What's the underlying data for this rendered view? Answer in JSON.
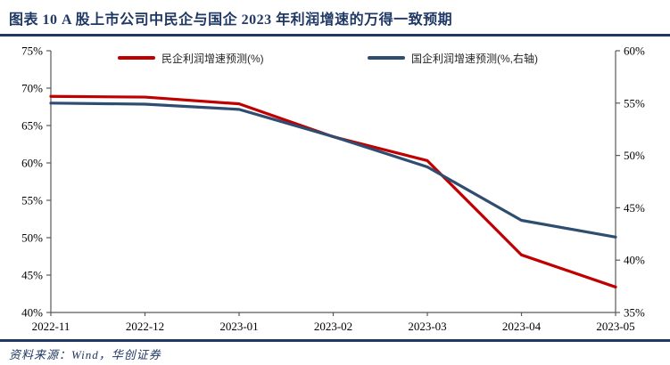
{
  "header": {
    "title": "图表 10   A 股上市公司中民企与国企 2023 年利润增速的万得一致预期"
  },
  "footer": {
    "source": "资料来源：Wind，华创证券"
  },
  "colors": {
    "accent_navy": "#1F3864",
    "private_line": "#C00000",
    "soe_line": "#2E4D71",
    "axis": "#595959",
    "tick_text": "#000000"
  },
  "chart_data": {
    "type": "line",
    "categories": [
      "2022-11",
      "2022-12",
      "2023-01",
      "2023-02",
      "2023-03",
      "2023-04",
      "2023-05"
    ],
    "series": [
      {
        "name": "民企利润增速预测(%)",
        "axis": "left",
        "color": "#C00000",
        "values": [
          68.9,
          68.8,
          67.9,
          63.5,
          60.3,
          47.7,
          43.4
        ]
      },
      {
        "name": "国企利润增速预测(%,右轴)",
        "axis": "right",
        "color": "#2E4D71",
        "values": [
          55.0,
          54.9,
          54.4,
          51.8,
          48.9,
          43.8,
          42.2
        ]
      }
    ],
    "left_axis": {
      "min": 40,
      "max": 75,
      "step": 5,
      "tick_labels": [
        "75%",
        "70%",
        "65%",
        "60%",
        "55%",
        "50%",
        "45%",
        "40%"
      ]
    },
    "right_axis": {
      "min": 35,
      "max": 60,
      "step": 5,
      "tick_labels": [
        "60%",
        "55%",
        "50%",
        "45%",
        "40%",
        "35%"
      ]
    },
    "legend_position": "top-inside",
    "grid": false,
    "title": "",
    "xlabel": "",
    "ylabel": ""
  }
}
